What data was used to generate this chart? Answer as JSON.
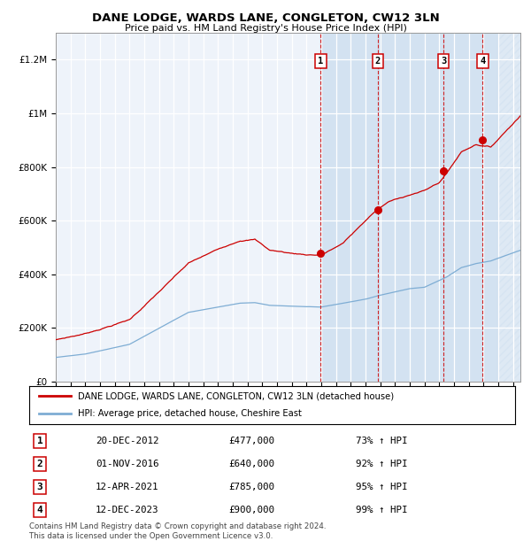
{
  "title": "DANE LODGE, WARDS LANE, CONGLETON, CW12 3LN",
  "subtitle": "Price paid vs. HM Land Registry's House Price Index (HPI)",
  "legend_line1": "DANE LODGE, WARDS LANE, CONGLETON, CW12 3LN (detached house)",
  "legend_line2": "HPI: Average price, detached house, Cheshire East",
  "footer": "Contains HM Land Registry data © Crown copyright and database right 2024.\nThis data is licensed under the Open Government Licence v3.0.",
  "red_color": "#cc0000",
  "blue_color": "#7eadd4",
  "background_color": "#ffffff",
  "chart_bg": "#eef3fa",
  "grid_color": "#ffffff",
  "sale_points": [
    {
      "label": "1",
      "date_str": "20-DEC-2012",
      "price": 477000,
      "pct": "73%",
      "date_x": 2012.97
    },
    {
      "label": "2",
      "date_str": "01-NOV-2016",
      "price": 640000,
      "pct": "92%",
      "date_x": 2016.83
    },
    {
      "label": "3",
      "date_str": "12-APR-2021",
      "price": 785000,
      "pct": "95%",
      "date_x": 2021.28
    },
    {
      "label": "4",
      "date_str": "12-DEC-2023",
      "price": 900000,
      "pct": "99%",
      "date_x": 2023.95
    }
  ],
  "hpi_region_start": 2012.97,
  "hatch_region_start": 2024.92,
  "ylim_max": 1300000,
  "xlim_start": 1995.0,
  "xlim_end": 2026.5,
  "yticks": [
    0,
    200000,
    400000,
    600000,
    800000,
    1000000,
    1200000
  ],
  "ylabels": [
    "£0",
    "£200K",
    "£400K",
    "£600K",
    "£800K",
    "£1M",
    "£1.2M"
  ]
}
